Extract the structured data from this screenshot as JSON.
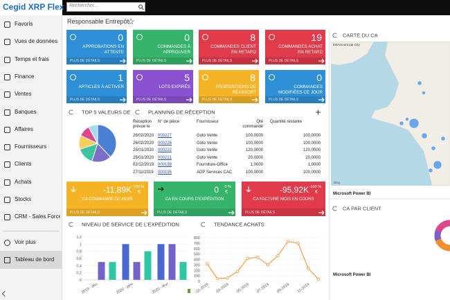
{
  "app": {
    "logo": "Cegid XRP Flex",
    "search_placeholder": "Rechercher..."
  },
  "sidebar": {
    "items": [
      "Favoris",
      "Vues de données",
      "Temps et frais",
      "Finance",
      "Ventes",
      "Banques",
      "Affaires",
      "Fournisseurs",
      "Clients",
      "Achats",
      "Stocks",
      "CRM - Sales Force..."
    ],
    "more": "Voir plus",
    "active": "Tableau de bord"
  },
  "page": {
    "title": "Responsable Entrepôt"
  },
  "tile_footer": "PLUS DE DÉTAILS",
  "tiles": [
    {
      "value": 0,
      "label": "APPROBATIONS EN ATTENTE",
      "color": "#2e8fd6"
    },
    {
      "value": 0,
      "label": "COMMANDES À APPROUVER",
      "color": "#36b46c"
    },
    {
      "value": 8,
      "label": "COMMANDES CLIENT EN RETARD",
      "color": "#e03a4b"
    },
    {
      "value": 19,
      "label": "COMMANDES ACHAT EN RETARD",
      "color": "#e03a4b"
    },
    {
      "value": 1,
      "label": "ARTICLES À ACTIVER",
      "color": "#2e8fd6"
    },
    {
      "value": 5,
      "label": "LOTS EXPIRÉS",
      "color": "#8a52d0"
    },
    {
      "value": 8,
      "label": "PROPOSITIONS DE RÉASSORT",
      "color": "#f5b326"
    },
    {
      "value": 0,
      "label": "COMMANDES MODIFIÉES CE JOUR",
      "color": "#2e8fd6"
    }
  ],
  "kpis": [
    {
      "value": "-11,89K",
      "change": "-100 %",
      "currency": "€",
      "label": "CA COMMANDE DU MOIS",
      "color": "#f5b326"
    },
    {
      "value": "0",
      "change": "0 %",
      "currency": "€",
      "label": "CA EN COURS D'EXPÉDITION",
      "color": "#36b46c"
    },
    {
      "value": "-95,92K",
      "change": "-100 %",
      "currency": "€",
      "label": "CA FACTURÉ MOIS EN COURS",
      "color": "#e03a4b"
    }
  ],
  "top5": {
    "title": "TOP 5 VALEURS DE",
    "type": "pie",
    "values": [
      38,
      17,
      15,
      12,
      10,
      8
    ],
    "colors": [
      "#4a7fd4",
      "#7b6fc9",
      "#3ec3a0",
      "#f5cf5a",
      "#e0478a",
      "#a6d9f0"
    ]
  },
  "planning": {
    "title": "PLANNING DE RÉCEPTION",
    "headers": [
      "Réception prévue le",
      "N° de pièce",
      "Fournisseur",
      "Qté commandé",
      "Quantité restante"
    ],
    "rows": [
      [
        "26/02/2020",
        "000227",
        "Goto Vente",
        "100,0000",
        "100,0000"
      ],
      [
        "26/02/2020",
        "000226",
        "Goto Vente",
        "100,0000",
        "100,0000"
      ],
      [
        "25/01/2020",
        "000222",
        "Goto Vente",
        "120,0000",
        "120,0000"
      ],
      [
        "25/01/2020",
        "000221",
        "Goto Vente",
        "20,0000",
        "20,0000"
      ],
      [
        "02/12/2019",
        "000198",
        "Fourniture-Office",
        "1,0000",
        "1,0000"
      ],
      [
        "27/11/2019",
        "000195",
        "ADP Services CAC",
        "100,0000",
        "100,0000"
      ]
    ]
  },
  "service": {
    "title": "NIVEAU DE SERVICE DE L'EXPÉDITION",
    "type": "bar",
    "categories": [
      "2019 - déc.",
      "2020 - janv.",
      "2020 - févr."
    ],
    "series": [
      {
        "color": "#4a68cf",
        "values": [
          null,
          1,
          1
        ]
      },
      {
        "color": "#7163c9",
        "values": [
          0.5,
          0.5,
          1
        ]
      },
      {
        "color": "#2fc6a4",
        "values": [
          0.5,
          0.8,
          0.5
        ]
      }
    ],
    "ylim": [
      0,
      1.2
    ],
    "yticks": [
      0,
      {
        "value": 0.2,
        "label": "0,2"
      },
      {
        "value": 0.4,
        "label": "0,4"
      },
      {
        "value": 0.6,
        "label": "0,6"
      },
      {
        "value": 0.8,
        "label": "0,8"
      },
      1,
      {
        "value": 1.2,
        "label": "1,2"
      }
    ],
    "grid": true
  },
  "achats": {
    "title": "TENDANCE ACHATS",
    "type": "line",
    "categories": [
      "01-2019",
      null,
      "03-2019",
      null,
      "05-2019",
      null,
      "07-2019",
      null,
      "09-2019",
      null,
      "11-2019",
      null
    ],
    "values": [
      320,
      50,
      60,
      180,
      420,
      440,
      300,
      470,
      730,
      700,
      240,
      40
    ],
    "color": "#f28e2b",
    "ylim": [
      0,
      800
    ],
    "yticks": [
      0,
      100,
      200,
      300,
      400,
      500,
      600,
      700,
      800
    ],
    "grid": true
  },
  "map": {
    "title": "CARTE DU CA",
    "subtitle": "EstAmount par City",
    "attribution": "Bing",
    "footer": "Microsoft Power BI"
  },
  "ca_client": {
    "title": "CA PAR CLIENT",
    "footer": "Microsoft Power BI"
  }
}
